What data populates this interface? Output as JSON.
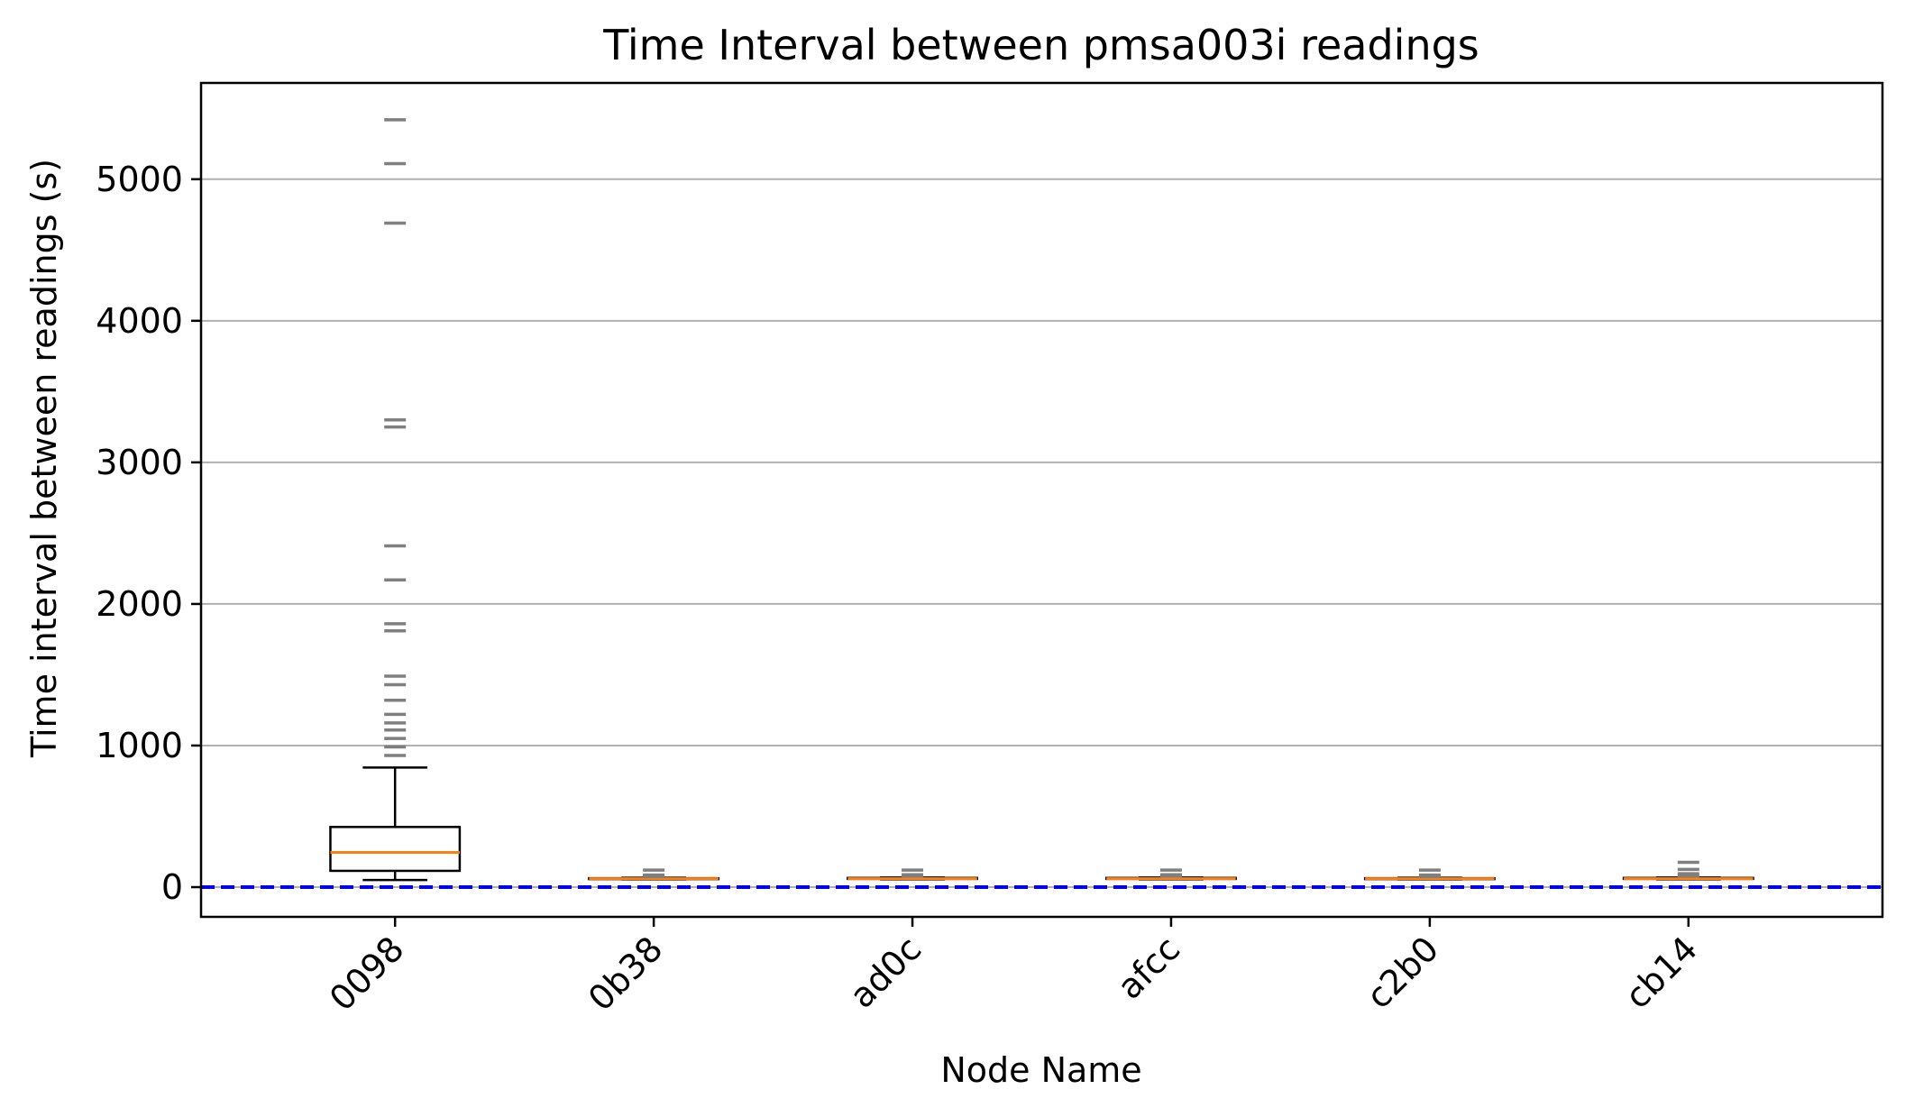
{
  "chart_data": {
    "type": "box",
    "title": "Time Interval between pmsa003i readings",
    "xlabel": "Node Name",
    "ylabel": "Time interval between readings (s)",
    "ylim": [
      -210,
      5680
    ],
    "yticks": [
      0,
      1000,
      2000,
      3000,
      4000,
      5000
    ],
    "grid": "y",
    "reference_line": {
      "y": 0,
      "style": "dashed",
      "color": "#0000ee"
    },
    "colors": {
      "median": "#ff7f0e",
      "box": "#000000",
      "outlier": "#7f7f7f",
      "grid": "#b0b0b0"
    },
    "categories": [
      "0098",
      "0b38",
      "ad0c",
      "afcc",
      "c2b0",
      "cb14"
    ],
    "boxes": [
      {
        "name": "0098",
        "whislo": 50,
        "q1": 115,
        "med": 245,
        "q3": 425,
        "whishi": 845,
        "fliers": [
          930,
          990,
          1050,
          1110,
          1160,
          1220,
          1320,
          1430,
          1490,
          1810,
          1860,
          2170,
          2410,
          3250,
          3300,
          4690,
          5110,
          5420
        ]
      },
      {
        "name": "0b38",
        "whislo": 55,
        "q1": 58,
        "med": 60,
        "q3": 63,
        "whishi": 66,
        "fliers": [
          75,
          85,
          120
        ]
      },
      {
        "name": "ad0c",
        "whislo": 55,
        "q1": 58,
        "med": 60,
        "q3": 65,
        "whishi": 68,
        "fliers": [
          78,
          88,
          120
        ]
      },
      {
        "name": "afcc",
        "whislo": 55,
        "q1": 58,
        "med": 60,
        "q3": 65,
        "whishi": 68,
        "fliers": [
          78,
          88,
          120
        ]
      },
      {
        "name": "c2b0",
        "whislo": 55,
        "q1": 58,
        "med": 60,
        "q3": 63,
        "whishi": 66,
        "fliers": [
          75,
          85,
          120
        ]
      },
      {
        "name": "cb14",
        "whislo": 55,
        "q1": 58,
        "med": 60,
        "q3": 65,
        "whishi": 68,
        "fliers": [
          80,
          95,
          125,
          175
        ]
      }
    ]
  }
}
